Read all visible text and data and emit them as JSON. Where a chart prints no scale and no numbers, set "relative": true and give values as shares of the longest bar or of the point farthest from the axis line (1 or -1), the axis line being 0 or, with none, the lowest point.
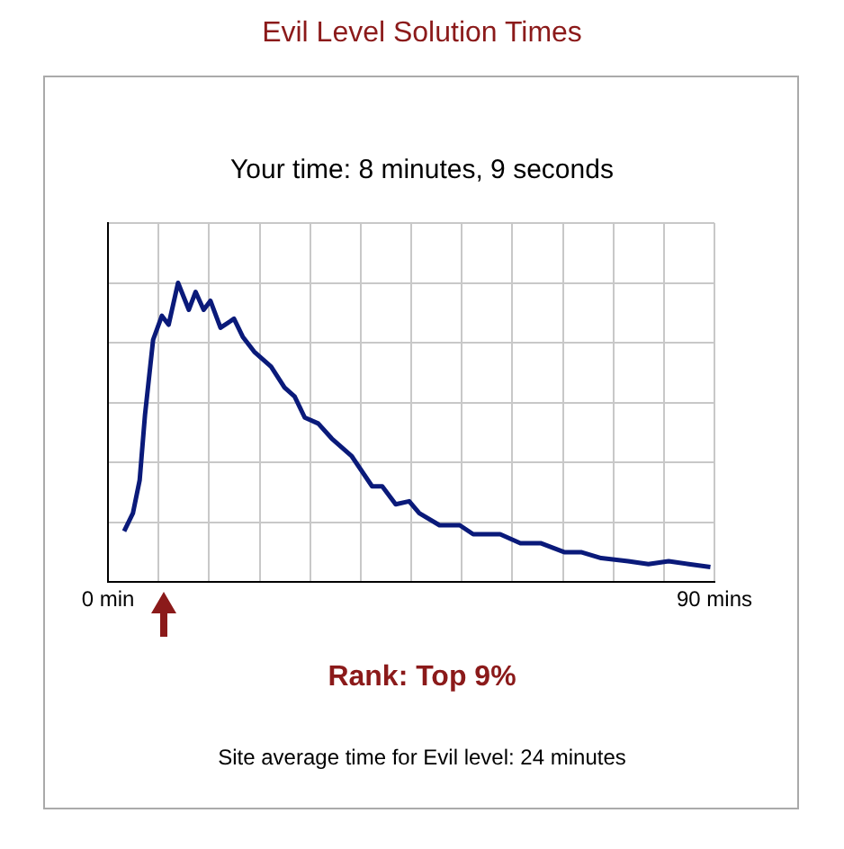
{
  "chart_data": {
    "type": "line",
    "title": "Evil Level Solution Times",
    "subtitle": "Your time: 8 minutes, 9 seconds",
    "relative": true,
    "legend": false,
    "grid": true,
    "marker": "none",
    "line_style": "solid",
    "xlim": [
      0,
      90
    ],
    "xticks": [
      {
        "value": 0,
        "label": "0 min"
      },
      {
        "value": 7.5,
        "label": null
      },
      {
        "value": 15,
        "label": null
      },
      {
        "value": 22.5,
        "label": null
      },
      {
        "value": 30,
        "label": null
      },
      {
        "value": 37.5,
        "label": null
      },
      {
        "value": 45,
        "label": null
      },
      {
        "value": 52.5,
        "label": null
      },
      {
        "value": 60,
        "label": null
      },
      {
        "value": 67.5,
        "label": null
      },
      {
        "value": 75,
        "label": null
      },
      {
        "value": 82.5,
        "label": null
      },
      {
        "value": 90,
        "label": "90 mins"
      }
    ],
    "annotations": [
      "Rank: Top 9%",
      "Site average time for Evil level: 24 minutes"
    ],
    "series": [
      {
        "color": "#0a1a7a",
        "x": [
          2.4,
          3.7,
          4.7,
          5.5,
          6.7,
          8.0,
          9.0,
          10.4,
          12.0,
          13.0,
          14.2,
          15.2,
          16.7,
          18.7,
          20.0,
          21.7,
          24.2,
          26.2,
          27.7,
          29.2,
          31.2,
          33.2,
          36.2,
          39.2,
          40.7,
          42.7,
          44.7,
          46.2,
          49.2,
          52.2,
          54.2,
          58.2,
          61.2,
          64.2,
          67.7,
          70.2,
          73.2,
          77.2,
          80.2,
          83.2,
          86.2,
          89.4
        ],
        "values": [
          0.17,
          0.23,
          0.34,
          0.56,
          0.81,
          0.89,
          0.86,
          1.0,
          0.91,
          0.97,
          0.91,
          0.94,
          0.85,
          0.88,
          0.82,
          0.77,
          0.72,
          0.65,
          0.62,
          0.55,
          0.53,
          0.48,
          0.42,
          0.32,
          0.32,
          0.26,
          0.27,
          0.23,
          0.19,
          0.19,
          0.16,
          0.16,
          0.13,
          0.13,
          0.1,
          0.1,
          0.08,
          0.07,
          0.06,
          0.07,
          0.06,
          0.05
        ]
      }
    ]
  }
}
